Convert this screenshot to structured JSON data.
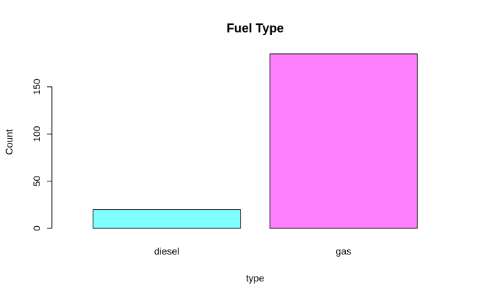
{
  "chart_data": {
    "type": "bar",
    "title": "Fuel Type",
    "xlabel": "type",
    "ylabel": "Count",
    "categories": [
      "diesel",
      "gas"
    ],
    "values": [
      20,
      185
    ],
    "colors": [
      "#80ffff",
      "#ff80ff"
    ],
    "ylim": [
      0,
      185
    ],
    "yticks": [
      0,
      50,
      100,
      150
    ],
    "grid": false,
    "legend": "none"
  }
}
